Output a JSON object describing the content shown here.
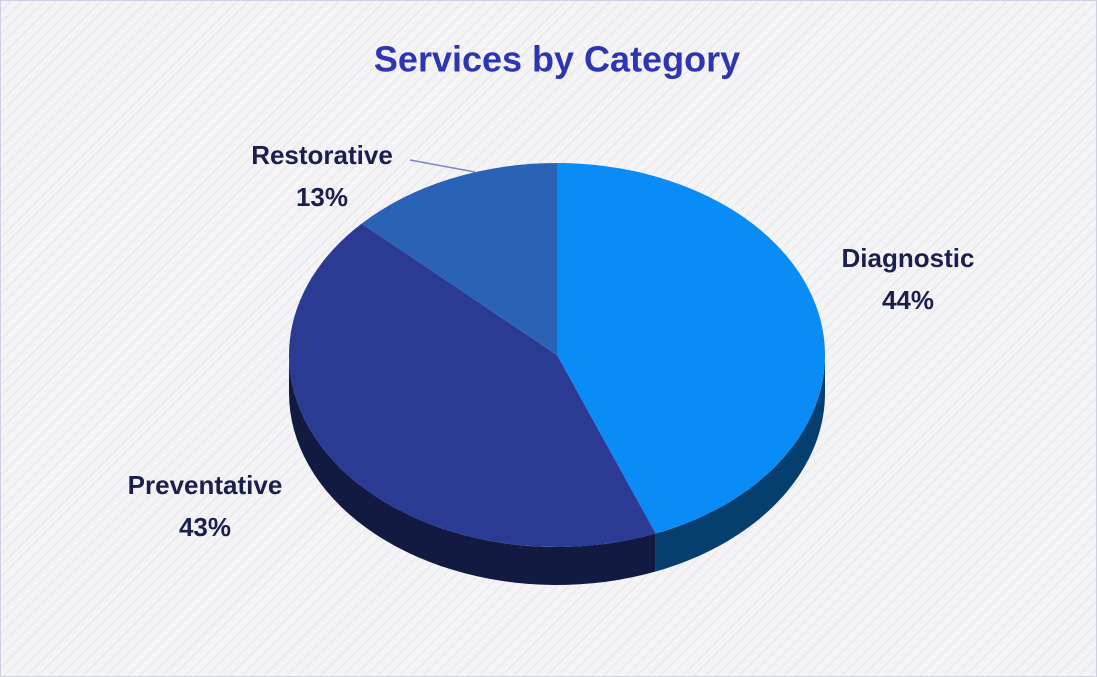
{
  "chart_data": {
    "type": "pie",
    "title": "Services by Category",
    "categories": [
      "Diagnostic",
      "Preventative",
      "Restorative"
    ],
    "values": [
      44,
      43,
      13
    ],
    "value_labels": [
      "44%",
      "43%",
      "13%"
    ],
    "colors": [
      "#0a8cf7",
      "#2b3a93",
      "#2a62b6"
    ]
  }
}
